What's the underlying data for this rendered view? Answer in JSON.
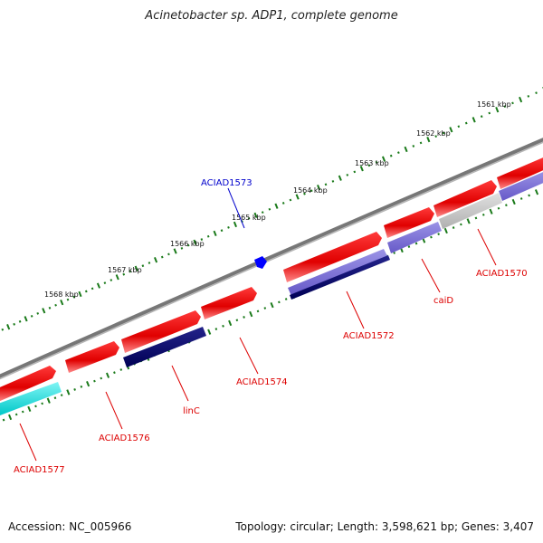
{
  "title": "Acinetobacter sp. ADP1, complete genome",
  "footer": {
    "accession": "Accession: NC_005966",
    "summary": "Topology: circular; Length: 3,598,621 bp; Genes: 3,407"
  },
  "ruler": {
    "labels": [
      "1561 kbp",
      "1562 kbp",
      "1563 kbp",
      "1564 kbp",
      "1565 kbp",
      "1566 kbp",
      "1567 kbp",
      "1568 kbp"
    ],
    "color": "#1a7a1a"
  },
  "genes": [
    {
      "id": "ACIAD1570",
      "label": "ACIAD1570",
      "strand": "reverse",
      "color": "#c8c8c8",
      "label_color": "#dd0000"
    },
    {
      "id": "caiD",
      "label": "caiD",
      "strand": "reverse",
      "color": "#7b6fd6",
      "label_color": "#dd0000"
    },
    {
      "id": "ACIAD1572",
      "label": "ACIAD1572",
      "strand": "reverse",
      "color": "#000066",
      "label_color": "#dd0000"
    },
    {
      "id": "ACIAD1573",
      "label": "ACIAD1573",
      "strand": "forward",
      "color": "#0000ff",
      "label_color": "#0000cc"
    },
    {
      "id": "ACIAD1574",
      "label": "ACIAD1574",
      "strand": "forward",
      "color": "#ee0000",
      "label_color": "#dd0000"
    },
    {
      "id": "linC",
      "label": "linC",
      "strand": "reverse",
      "color": "#000066",
      "label_color": "#dd0000"
    },
    {
      "id": "ACIAD1576",
      "label": "ACIAD1576",
      "strand": "forward",
      "color": "#ee0000",
      "label_color": "#dd0000"
    },
    {
      "id": "ACIAD1577",
      "label": "ACIAD1577",
      "strand": "reverse",
      "color": "#00d8d8",
      "label_color": "#dd0000"
    }
  ],
  "colors": {
    "backbone": "#777777",
    "forward_gene": "#ee0000",
    "reverse_dark": "#000066",
    "reverse_violet": "#7b6fd6",
    "reverse_grey": "#c8c8c8",
    "reverse_cyan": "#00d8d8",
    "small_marker": "#0000ff"
  }
}
